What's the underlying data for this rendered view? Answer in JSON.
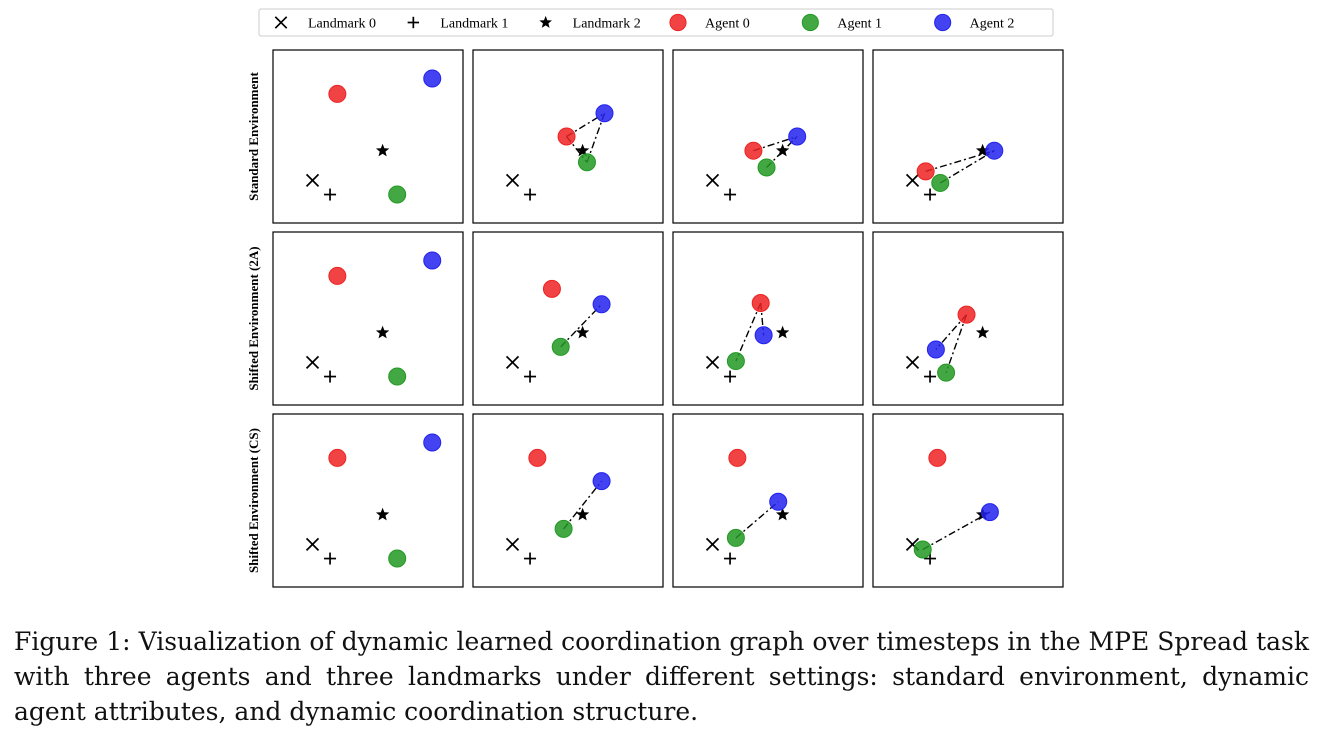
{
  "chart_data": {
    "type": "scatter",
    "legend": {
      "position": "top",
      "entries": [
        {
          "label": "Landmark 0",
          "marker": "x",
          "color": "#000000"
        },
        {
          "label": "Landmark 1",
          "marker": "plus",
          "color": "#000000"
        },
        {
          "label": "Landmark 2",
          "marker": "star",
          "color": "#000000"
        },
        {
          "label": "Agent 0",
          "marker": "circle",
          "color": "#ee2222"
        },
        {
          "label": "Agent 1",
          "marker": "circle",
          "color": "#229922"
        },
        {
          "label": "Agent 2",
          "marker": "circle",
          "color": "#2222ee"
        }
      ]
    },
    "landmarks": {
      "L0": [
        0.12,
        0.16
      ],
      "L1": [
        0.24,
        0.05
      ],
      "L2": [
        0.6,
        0.39
      ]
    },
    "axes_visible": false,
    "grid": false,
    "xlim": [
      0,
      1
    ],
    "ylim": [
      0,
      1
    ],
    "rows": [
      {
        "label": "Standard Environment",
        "panels": [
          {
            "agents": [
              [
                0.29,
                0.83
              ],
              [
                0.7,
                0.05
              ],
              [
                0.94,
                0.95
              ]
            ],
            "edges": []
          },
          {
            "agents": [
              [
                0.49,
                0.5
              ],
              [
                0.63,
                0.3
              ],
              [
                0.75,
                0.68
              ]
            ],
            "edges": [
              [
                0,
                1
              ],
              [
                0,
                2
              ],
              [
                1,
                2
              ]
            ]
          },
          {
            "agents": [
              [
                0.4,
                0.39
              ],
              [
                0.49,
                0.26
              ],
              [
                0.7,
                0.5
              ]
            ],
            "edges": [
              [
                0,
                2
              ],
              [
                1,
                2
              ]
            ]
          },
          {
            "agents": [
              [
                0.21,
                0.23
              ],
              [
                0.31,
                0.14
              ],
              [
                0.68,
                0.39
              ]
            ],
            "edges": [
              [
                0,
                2
              ],
              [
                1,
                2
              ]
            ]
          }
        ]
      },
      {
        "label": "Shifted Environment (2A)",
        "panels": [
          {
            "agents": [
              [
                0.29,
                0.83
              ],
              [
                0.7,
                0.05
              ],
              [
                0.94,
                0.95
              ]
            ],
            "edges": []
          },
          {
            "agents": [
              [
                0.39,
                0.73
              ],
              [
                0.45,
                0.28
              ],
              [
                0.73,
                0.61
              ]
            ],
            "edges": [
              [
                1,
                2
              ]
            ]
          },
          {
            "agents": [
              [
                0.45,
                0.62
              ],
              [
                0.28,
                0.17
              ],
              [
                0.47,
                0.37
              ]
            ],
            "edges": [
              [
                0,
                1
              ],
              [
                0,
                2
              ]
            ]
          },
          {
            "agents": [
              [
                0.49,
                0.53
              ],
              [
                0.35,
                0.08
              ],
              [
                0.28,
                0.26
              ]
            ],
            "edges": [
              [
                0,
                1
              ],
              [
                0,
                2
              ]
            ]
          }
        ]
      },
      {
        "label": "Shifted Environment (CS)",
        "panels": [
          {
            "agents": [
              [
                0.29,
                0.83
              ],
              [
                0.7,
                0.05
              ],
              [
                0.94,
                0.95
              ]
            ],
            "edges": []
          },
          {
            "agents": [
              [
                0.29,
                0.83
              ],
              [
                0.47,
                0.28
              ],
              [
                0.73,
                0.65
              ]
            ],
            "edges": [
              [
                1,
                2
              ]
            ]
          },
          {
            "agents": [
              [
                0.29,
                0.83
              ],
              [
                0.28,
                0.21
              ],
              [
                0.57,
                0.49
              ]
            ],
            "edges": [
              [
                1,
                2
              ]
            ]
          },
          {
            "agents": [
              [
                0.29,
                0.83
              ],
              [
                0.19,
                0.12
              ],
              [
                0.65,
                0.41
              ]
            ],
            "edges": [
              [
                1,
                2
              ]
            ]
          }
        ]
      }
    ]
  },
  "caption": "Figure 1: Visualization of dynamic learned coordination graph over timesteps in the MPE Spread task with three agents and three landmarks under different settings: standard environment, dynamic agent attributes, and dynamic coordination structure."
}
